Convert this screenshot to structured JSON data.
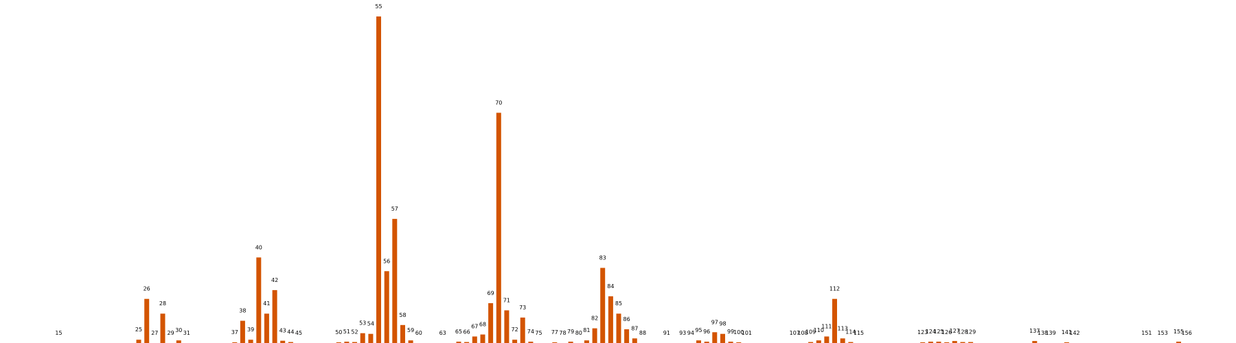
{
  "chart_data": {
    "type": "bar",
    "title": "",
    "xlabel": "",
    "ylabel": "",
    "axes_visible": false,
    "grid": false,
    "bar_color": "#d35400",
    "ylim": [
      0,
      1
    ],
    "categories": [
      "15",
      "25",
      "26",
      "27",
      "28",
      "29",
      "30",
      "31",
      "37",
      "38",
      "39",
      "40",
      "41",
      "42",
      "43",
      "44",
      "45",
      "50",
      "51",
      "52",
      "53",
      "54",
      "55",
      "56",
      "57",
      "58",
      "59",
      "60",
      "63",
      "65",
      "66",
      "67",
      "68",
      "69",
      "70",
      "71",
      "72",
      "73",
      "74",
      "75",
      "77",
      "78",
      "79",
      "80",
      "81",
      "82",
      "83",
      "84",
      "85",
      "86",
      "87",
      "88",
      "91",
      "93",
      "94",
      "95",
      "96",
      "97",
      "98",
      "99",
      "100",
      "101",
      "107",
      "108",
      "109",
      "110",
      "111",
      "112",
      "113",
      "114",
      "115",
      "123",
      "124",
      "125",
      "126",
      "127",
      "128",
      "129",
      "137",
      "138",
      "139",
      "141",
      "142",
      "151",
      "153",
      "155",
      "156"
    ],
    "values": [
      0,
      0.01,
      0.135,
      0,
      0.09,
      0,
      0.008,
      0,
      0.002,
      0.068,
      0.01,
      0.262,
      0.09,
      0.162,
      0.007,
      0.003,
      0,
      0.002,
      0.004,
      0.003,
      0.03,
      0.028,
      1.0,
      0.22,
      0.38,
      0.055,
      0.008,
      0,
      0,
      0.004,
      0.003,
      0.02,
      0.026,
      0.122,
      0.705,
      0.1,
      0.01,
      0.078,
      0.004,
      0,
      0.002,
      0,
      0.004,
      0,
      0.008,
      0.045,
      0.23,
      0.143,
      0.09,
      0.042,
      0.014,
      0,
      0,
      0,
      0,
      0.008,
      0.004,
      0.033,
      0.028,
      0.004,
      0.002,
      0,
      0,
      0,
      0.003,
      0.008,
      0.02,
      0.135,
      0.014,
      0.003,
      0,
      0.002,
      0.004,
      0.004,
      0.002,
      0.006,
      0.003,
      0.003,
      0.006,
      0,
      0,
      0.002,
      0,
      0,
      0,
      0.004,
      0
    ]
  }
}
